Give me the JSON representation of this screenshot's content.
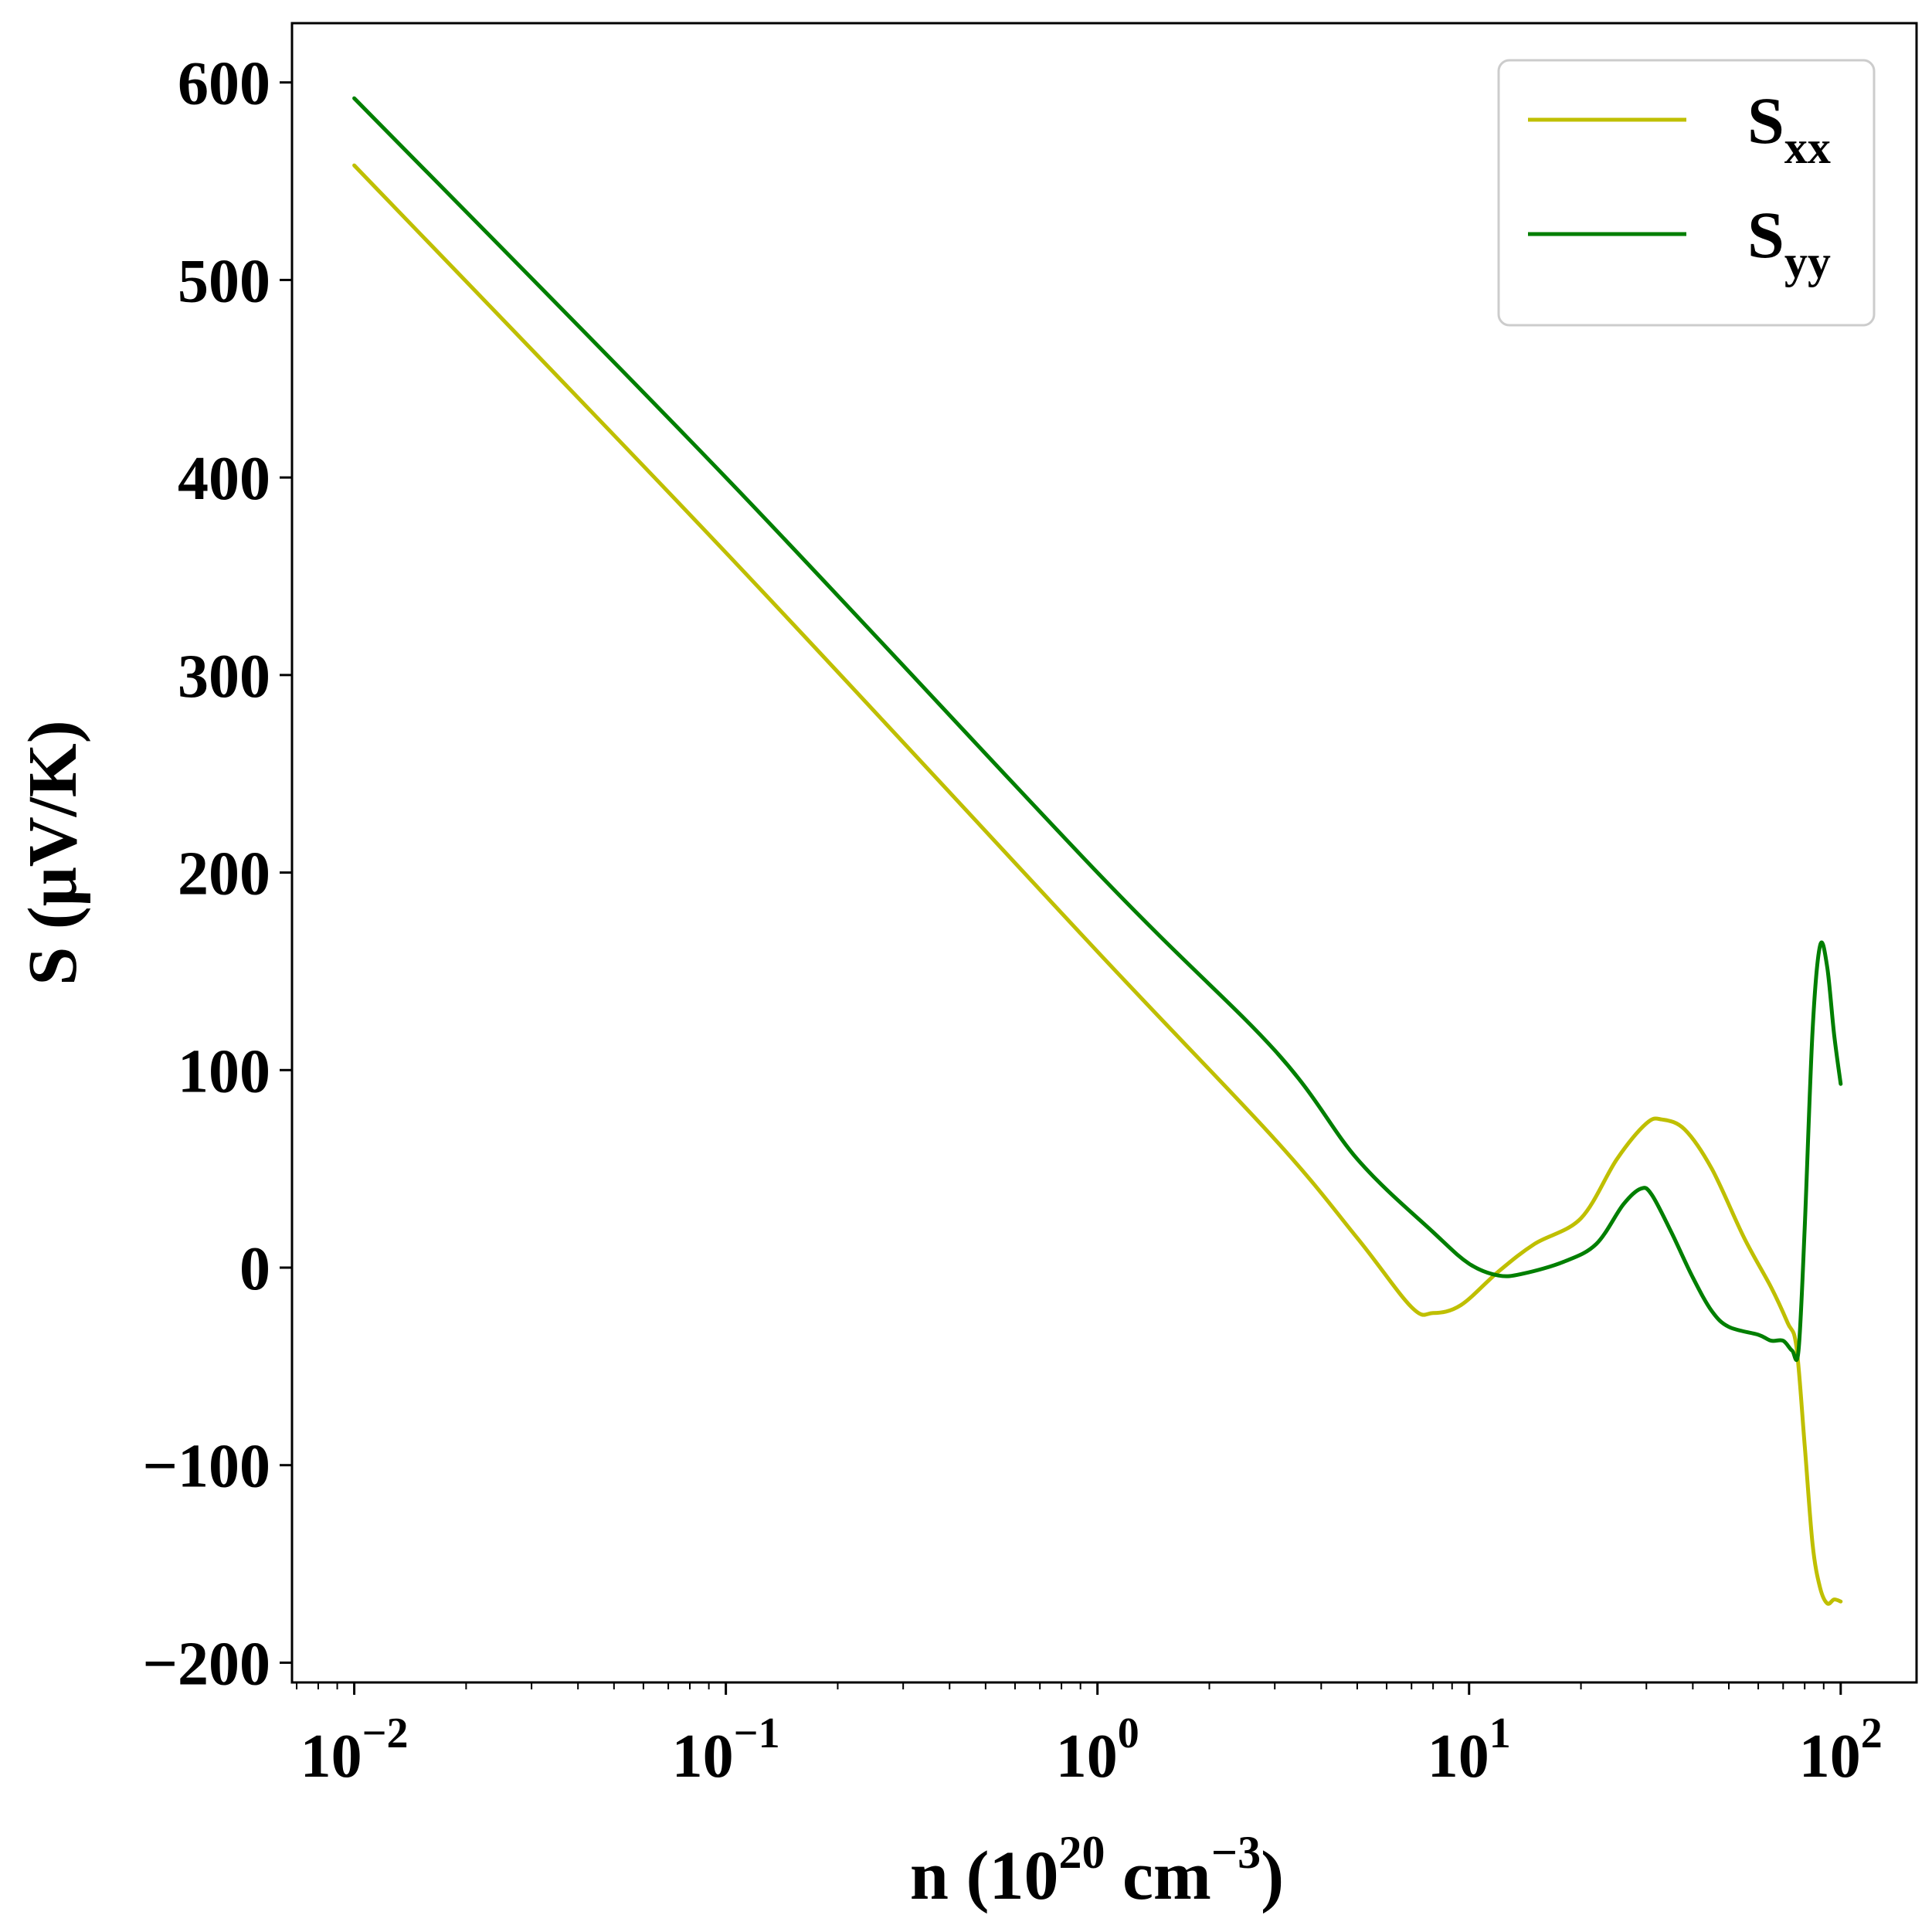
{
  "chart_data": {
    "type": "line",
    "title": "",
    "xlabel": {
      "prefix": "n (10",
      "sup1": "20",
      "mid": " cm",
      "sup2": "−3",
      "suffix": ")"
    },
    "ylabel": "S (μV/K)",
    "xscale": "log",
    "xlim": [
      0.0068,
      160
    ],
    "ylim": [
      -210,
      630
    ],
    "yticks": [
      -200,
      -100,
      0,
      100,
      200,
      300,
      400,
      500,
      600
    ],
    "ytick_labels": [
      "−200",
      "−100",
      "0",
      "100",
      "200",
      "300",
      "400",
      "500",
      "600"
    ],
    "xticks": [
      {
        "value": 0.01,
        "base": "10",
        "exp": "−2"
      },
      {
        "value": 0.1,
        "base": "10",
        "exp": "−1"
      },
      {
        "value": 1,
        "base": "10",
        "exp": "0"
      },
      {
        "value": 10,
        "base": "10",
        "exp": "1"
      },
      {
        "value": 100,
        "base": "10",
        "exp": "2"
      }
    ],
    "legend": {
      "position": "top-right"
    },
    "series": [
      {
        "name": "Sxx",
        "label_main": "S",
        "label_sub": "xx",
        "color": "#bfbf00",
        "points": [
          [
            0.01,
            558
          ],
          [
            0.1,
            362
          ],
          [
            1,
            160
          ],
          [
            3,
            65
          ],
          [
            5,
            15
          ],
          [
            7,
            -20
          ],
          [
            8,
            -23
          ],
          [
            9.5,
            -19
          ],
          [
            12,
            -2
          ],
          [
            15,
            12
          ],
          [
            20,
            25
          ],
          [
            25,
            55
          ],
          [
            30,
            73
          ],
          [
            33,
            75
          ],
          [
            38,
            70
          ],
          [
            45,
            50
          ],
          [
            55,
            15
          ],
          [
            65,
            -10
          ],
          [
            72,
            -28
          ],
          [
            76,
            -40
          ],
          [
            80,
            -90
          ],
          [
            84,
            -140
          ],
          [
            88,
            -162
          ],
          [
            92,
            -170
          ],
          [
            96,
            -168
          ],
          [
            100,
            -169
          ]
        ]
      },
      {
        "name": "Syy",
        "label_main": "S",
        "label_sub": "yy",
        "color": "#007f00",
        "points": [
          [
            0.01,
            592
          ],
          [
            0.1,
            400
          ],
          [
            1,
            200
          ],
          [
            3,
            110
          ],
          [
            5,
            55
          ],
          [
            8,
            18
          ],
          [
            10,
            2
          ],
          [
            12,
            -4
          ],
          [
            14,
            -3
          ],
          [
            18,
            3
          ],
          [
            22,
            12
          ],
          [
            26,
            32
          ],
          [
            29,
            40
          ],
          [
            31,
            37
          ],
          [
            35,
            18
          ],
          [
            40,
            -5
          ],
          [
            45,
            -22
          ],
          [
            50,
            -30
          ],
          [
            60,
            -34
          ],
          [
            65,
            -37
          ],
          [
            70,
            -37
          ],
          [
            74,
            -42
          ],
          [
            77,
            -42
          ],
          [
            80,
            20
          ],
          [
            84,
            120
          ],
          [
            88,
            163
          ],
          [
            92,
            152
          ],
          [
            96,
            118
          ],
          [
            100,
            93
          ]
        ]
      }
    ]
  }
}
